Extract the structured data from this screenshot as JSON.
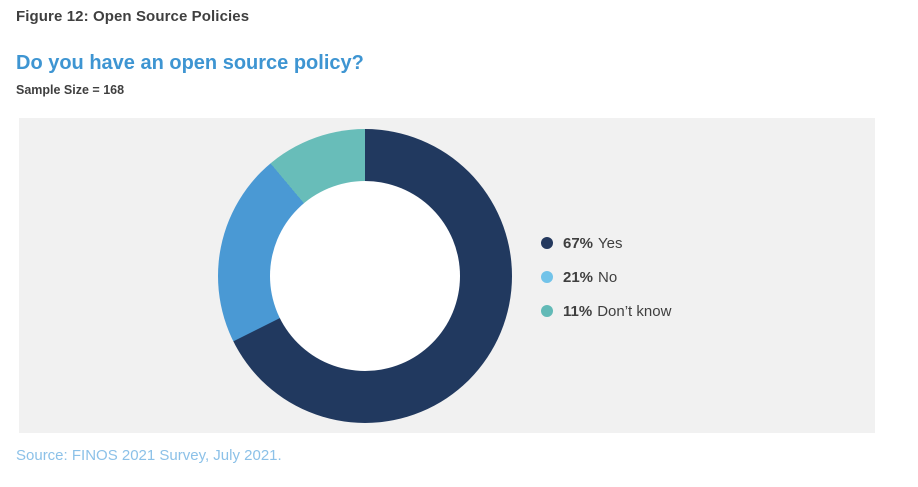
{
  "figure": {
    "title": "Figure 12: Open Source Policies",
    "question": "Do you have an open source policy?",
    "sample_size_label": "Sample Size = 168",
    "source": "Source: FINOS 2021 Survey, July 2021."
  },
  "colors": {
    "question_blue": "#3e95d2",
    "source_blue": "#8cc1e8",
    "panel_bg": "#f1f1f1",
    "text_dark": "#3f3f3f"
  },
  "chart_data": {
    "type": "pie",
    "subtype": "donut",
    "title": "Do you have an open source policy?",
    "sample_size": 168,
    "legend_position": "right",
    "start_angle_deg": 0,
    "direction": "clockwise",
    "slices": [
      {
        "label": "Yes",
        "value": 67,
        "pct_label": "67%",
        "color": "#21395f",
        "legend_dot_color": "#24395e"
      },
      {
        "label": "No",
        "value": 21,
        "pct_label": "21%",
        "color": "#4a99d4",
        "legend_dot_color": "#72c3e9"
      },
      {
        "label": "Don’t know",
        "value": 11,
        "pct_label": "11%",
        "color": "#68bdb9",
        "legend_dot_color": "#62bab7"
      }
    ]
  }
}
